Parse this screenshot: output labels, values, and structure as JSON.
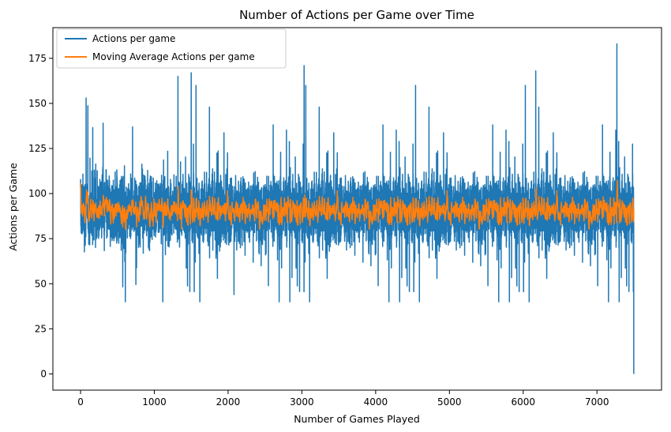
{
  "chart_data": {
    "type": "line",
    "title": "Number of Actions per Game over Time",
    "xlabel": "Number of Games Played",
    "ylabel": "Actions per Game",
    "xlim": [
      -375,
      7875
    ],
    "ylim": [
      -9,
      192
    ],
    "xticks": [
      0,
      1000,
      2000,
      3000,
      4000,
      5000,
      6000,
      7000
    ],
    "yticks": [
      0,
      25,
      50,
      75,
      100,
      125,
      150,
      175
    ],
    "grid": false,
    "legend_position": "top-left",
    "series": [
      {
        "name": "Actions per game",
        "color": "#1f77b4",
        "n_points": 7500,
        "mean": 91,
        "typical_range": [
          65,
          118
        ],
        "notable_points": [
          {
            "x": 75,
            "y": 153
          },
          {
            "x": 1320,
            "y": 165
          },
          {
            "x": 1500,
            "y": 167
          },
          {
            "x": 2080,
            "y": 44
          },
          {
            "x": 3030,
            "y": 171
          },
          {
            "x": 6170,
            "y": 168
          },
          {
            "x": 7270,
            "y": 183
          },
          {
            "x": 7500,
            "y": 0
          }
        ]
      },
      {
        "name": "Moving Average Actions per game",
        "color": "#ff7f0e",
        "n_points": 7500,
        "mean": 92,
        "typical_range": [
          80,
          107
        ]
      }
    ]
  }
}
